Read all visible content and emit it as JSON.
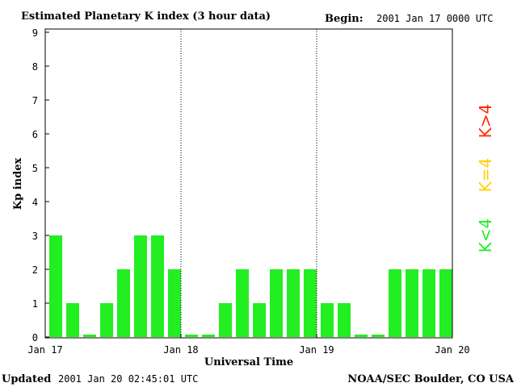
{
  "header": {
    "title": "Estimated Planetary K index (3 hour data)",
    "begin_label": "Begin:",
    "begin_value": "2001 Jan 17 0000 UTC"
  },
  "footer": {
    "updated_label": "Updated",
    "updated_value": "2001 Jan 20 02:45:01 UTC",
    "source": "NOAA/SEC Boulder, CO USA"
  },
  "legend": {
    "high": {
      "label": "K>4",
      "color": "#ff2a00"
    },
    "equal": {
      "label": "K=4",
      "color": "#ffd000"
    },
    "low": {
      "label": "K<4",
      "color": "#22ee22"
    }
  },
  "chart_data": {
    "type": "bar",
    "title": "Estimated Planetary K index (3 hour data)",
    "xlabel": "Universal Time",
    "ylabel": "Kp index",
    "ylim": [
      0,
      9
    ],
    "yticks": [
      0,
      1,
      2,
      3,
      4,
      5,
      6,
      7,
      8,
      9
    ],
    "day_labels": [
      "Jan 17",
      "Jan 18",
      "Jan 19",
      "Jan 20"
    ],
    "bar_color": "#22ee22",
    "grid": "vertical dotted day separators",
    "values": [
      3,
      1,
      0,
      1,
      2,
      3,
      3,
      2,
      0,
      0,
      1,
      2,
      1,
      2,
      2,
      2,
      1,
      1,
      0,
      0,
      2,
      2,
      2,
      2
    ]
  }
}
